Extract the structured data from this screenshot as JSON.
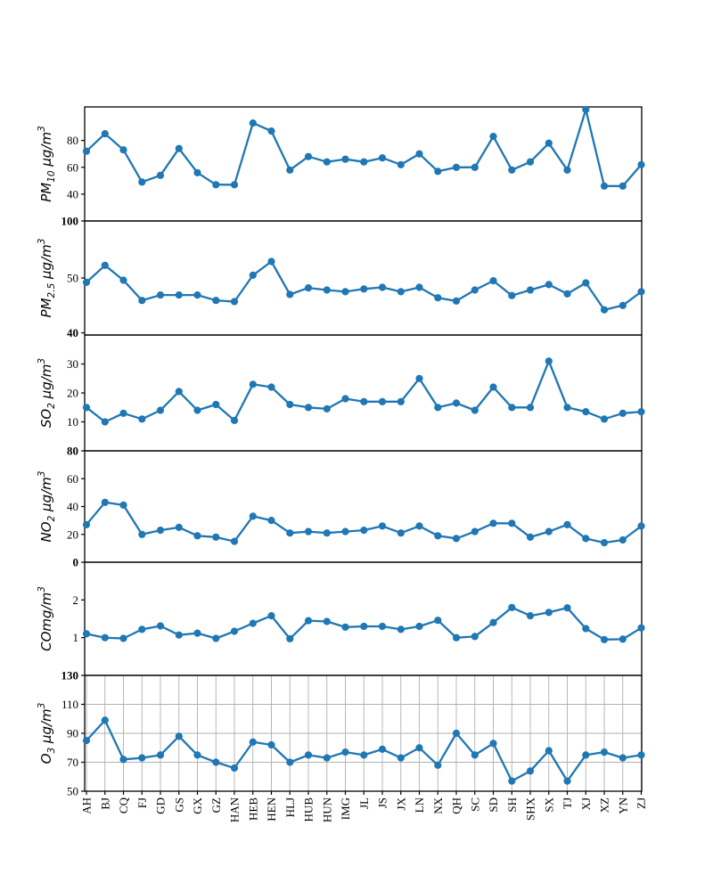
{
  "figure": {
    "background": "#ffffff",
    "line_color": "#1f77b4",
    "grid_color": "#b0b0b0",
    "spine_color": "#000000",
    "title": ""
  },
  "chart_data": {
    "type": "line",
    "subtype": "six stacked subplots, shared x-axis, markers on every point",
    "categories": [
      "AH",
      "BJ",
      "CQ",
      "FJ",
      "GD",
      "GS",
      "GX",
      "GZ",
      "HAN",
      "HEB",
      "HEN",
      "HLJ",
      "HUB",
      "HUN",
      "IMG",
      "JL",
      "JS",
      "JX",
      "LN",
      "NX",
      "QH",
      "SC",
      "SD",
      "SH",
      "SHX",
      "SX",
      "TJ",
      "XJ",
      "XZ",
      "YN",
      "ZJ"
    ],
    "legend": null,
    "panels": [
      {
        "id": "pm10",
        "ylabel_text": "PM10 μg/m3",
        "ylabel_parts": [
          {
            "t": "PM",
            "k": "n"
          },
          {
            "t": "10",
            "k": "sub"
          },
          {
            "t": " μg/m",
            "k": "n"
          },
          {
            "t": "3",
            "k": "sup"
          }
        ],
        "ylim": [
          20,
          105
        ],
        "grid": false,
        "yticks": [
          {
            "value": 80,
            "label": "80",
            "bold": false
          },
          {
            "value": 60,
            "label": "60",
            "bold": false
          },
          {
            "value": 40,
            "label": "40",
            "bold": false
          },
          {
            "value": 20,
            "label": "100",
            "bold": true
          }
        ],
        "values": [
          72,
          85,
          73,
          49,
          54,
          74,
          56,
          47,
          47,
          93,
          87,
          58,
          68,
          64,
          66,
          64,
          67,
          62,
          70,
          57,
          60,
          60,
          83,
          58,
          64,
          78,
          58,
          103,
          46,
          46,
          62
        ]
      },
      {
        "id": "pm25",
        "ylabel_text": "PM2.5 μg/m3",
        "ylabel_parts": [
          {
            "t": "PM",
            "k": "n"
          },
          {
            "t": "2.5",
            "k": "sub"
          },
          {
            "t": " μg/m",
            "k": "n"
          },
          {
            "t": "3",
            "k": "sup"
          }
        ],
        "ylim": [
          39.6,
          60.4
        ],
        "grid": false,
        "yticks": [
          {
            "value": 50,
            "label": "50",
            "bold": false
          },
          {
            "value": 40,
            "label": "40",
            "bold": true
          }
        ],
        "values": [
          49.2,
          52.3,
          49.6,
          45.9,
          46.9,
          46.9,
          46.9,
          45.9,
          45.7,
          50.5,
          53,
          47,
          48.2,
          47.8,
          47.5,
          48,
          48.3,
          47.5,
          48.3,
          46.4,
          45.8,
          47.8,
          49.5,
          46.8,
          47.8,
          48.8,
          47.1,
          49.1,
          44.2,
          45,
          47.5
        ]
      },
      {
        "id": "so2",
        "ylabel_text": "SO2 μg/m3",
        "ylabel_parts": [
          {
            "t": "SO",
            "k": "n"
          },
          {
            "t": "2",
            "k": "sub"
          },
          {
            "t": " μg/m",
            "k": "n"
          },
          {
            "t": "3",
            "k": "sup"
          }
        ],
        "ylim": [
          0,
          40
        ],
        "grid": false,
        "yticks": [
          {
            "value": 30,
            "label": "30",
            "bold": false
          },
          {
            "value": 20,
            "label": "20",
            "bold": false
          },
          {
            "value": 10,
            "label": "10",
            "bold": false
          },
          {
            "value": 0,
            "label": "80",
            "bold": true
          }
        ],
        "values": [
          15,
          10,
          13,
          11,
          14,
          20.5,
          14,
          16,
          10.5,
          23,
          22,
          16,
          15,
          14.5,
          18,
          17,
          17,
          17,
          25,
          15,
          16.5,
          14,
          22,
          15,
          15,
          31,
          15,
          13.5,
          11,
          13,
          13.5
        ]
      },
      {
        "id": "no2",
        "ylabel_text": "NO2 μg/m3",
        "ylabel_parts": [
          {
            "t": "NO",
            "k": "n"
          },
          {
            "t": "2",
            "k": "sub"
          },
          {
            "t": " μg/m",
            "k": "n"
          },
          {
            "t": "3",
            "k": "sup"
          }
        ],
        "ylim": [
          0,
          80
        ],
        "grid": false,
        "yticks": [
          {
            "value": 60,
            "label": "60",
            "bold": false
          },
          {
            "value": 40,
            "label": "40",
            "bold": false
          },
          {
            "value": 20,
            "label": "20",
            "bold": false
          },
          {
            "value": 0,
            "label": "0",
            "bold": true
          }
        ],
        "values": [
          27,
          43,
          41,
          20,
          23,
          25,
          19,
          18,
          15,
          33,
          30,
          21,
          22,
          21,
          22,
          23,
          26,
          21,
          26,
          19,
          17,
          22,
          28,
          28,
          18,
          22,
          27,
          17,
          14,
          16,
          26
        ]
      },
      {
        "id": "co",
        "ylabel_text": "COmg/m3",
        "ylabel_parts": [
          {
            "t": "CO",
            "k": "n"
          },
          {
            "t": "mg/m",
            "k": "n"
          },
          {
            "t": "3",
            "k": "sup"
          }
        ],
        "ylim": [
          0,
          3
        ],
        "grid": false,
        "yticks": [
          {
            "value": 2,
            "label": "2",
            "bold": false
          },
          {
            "value": 1,
            "label": "1",
            "bold": false
          },
          {
            "value": 0,
            "label": "130",
            "bold": true
          }
        ],
        "values": [
          1.1,
          1.0,
          0.98,
          1.22,
          1.31,
          1.07,
          1.12,
          0.98,
          1.17,
          1.38,
          1.58,
          0.97,
          1.45,
          1.43,
          1.28,
          1.3,
          1.3,
          1.22,
          1.3,
          1.46,
          1.0,
          1.03,
          1.4,
          1.8,
          1.58,
          1.67,
          1.79,
          1.24,
          0.95,
          0.96,
          1.26
        ]
      },
      {
        "id": "o3",
        "ylabel_text": "O3 μg/m3",
        "ylabel_parts": [
          {
            "t": "O",
            "k": "n"
          },
          {
            "t": "3",
            "k": "sub"
          },
          {
            "t": " μg/m",
            "k": "n"
          },
          {
            "t": "3",
            "k": "sup"
          }
        ],
        "ylim": [
          50,
          130
        ],
        "grid": true,
        "yticks": [
          {
            "value": 110,
            "label": "110",
            "bold": false
          },
          {
            "value": 90,
            "label": "90",
            "bold": false
          },
          {
            "value": 70,
            "label": "70",
            "bold": false
          },
          {
            "value": 50,
            "label": "50",
            "bold": false
          }
        ],
        "values": [
          85,
          99,
          72,
          73,
          75,
          88,
          75,
          70,
          66,
          84,
          82,
          70,
          75,
          73,
          77,
          75,
          79,
          73,
          80,
          68,
          90,
          75,
          83,
          57,
          64,
          78,
          57,
          75,
          77,
          73,
          75
        ]
      }
    ]
  }
}
